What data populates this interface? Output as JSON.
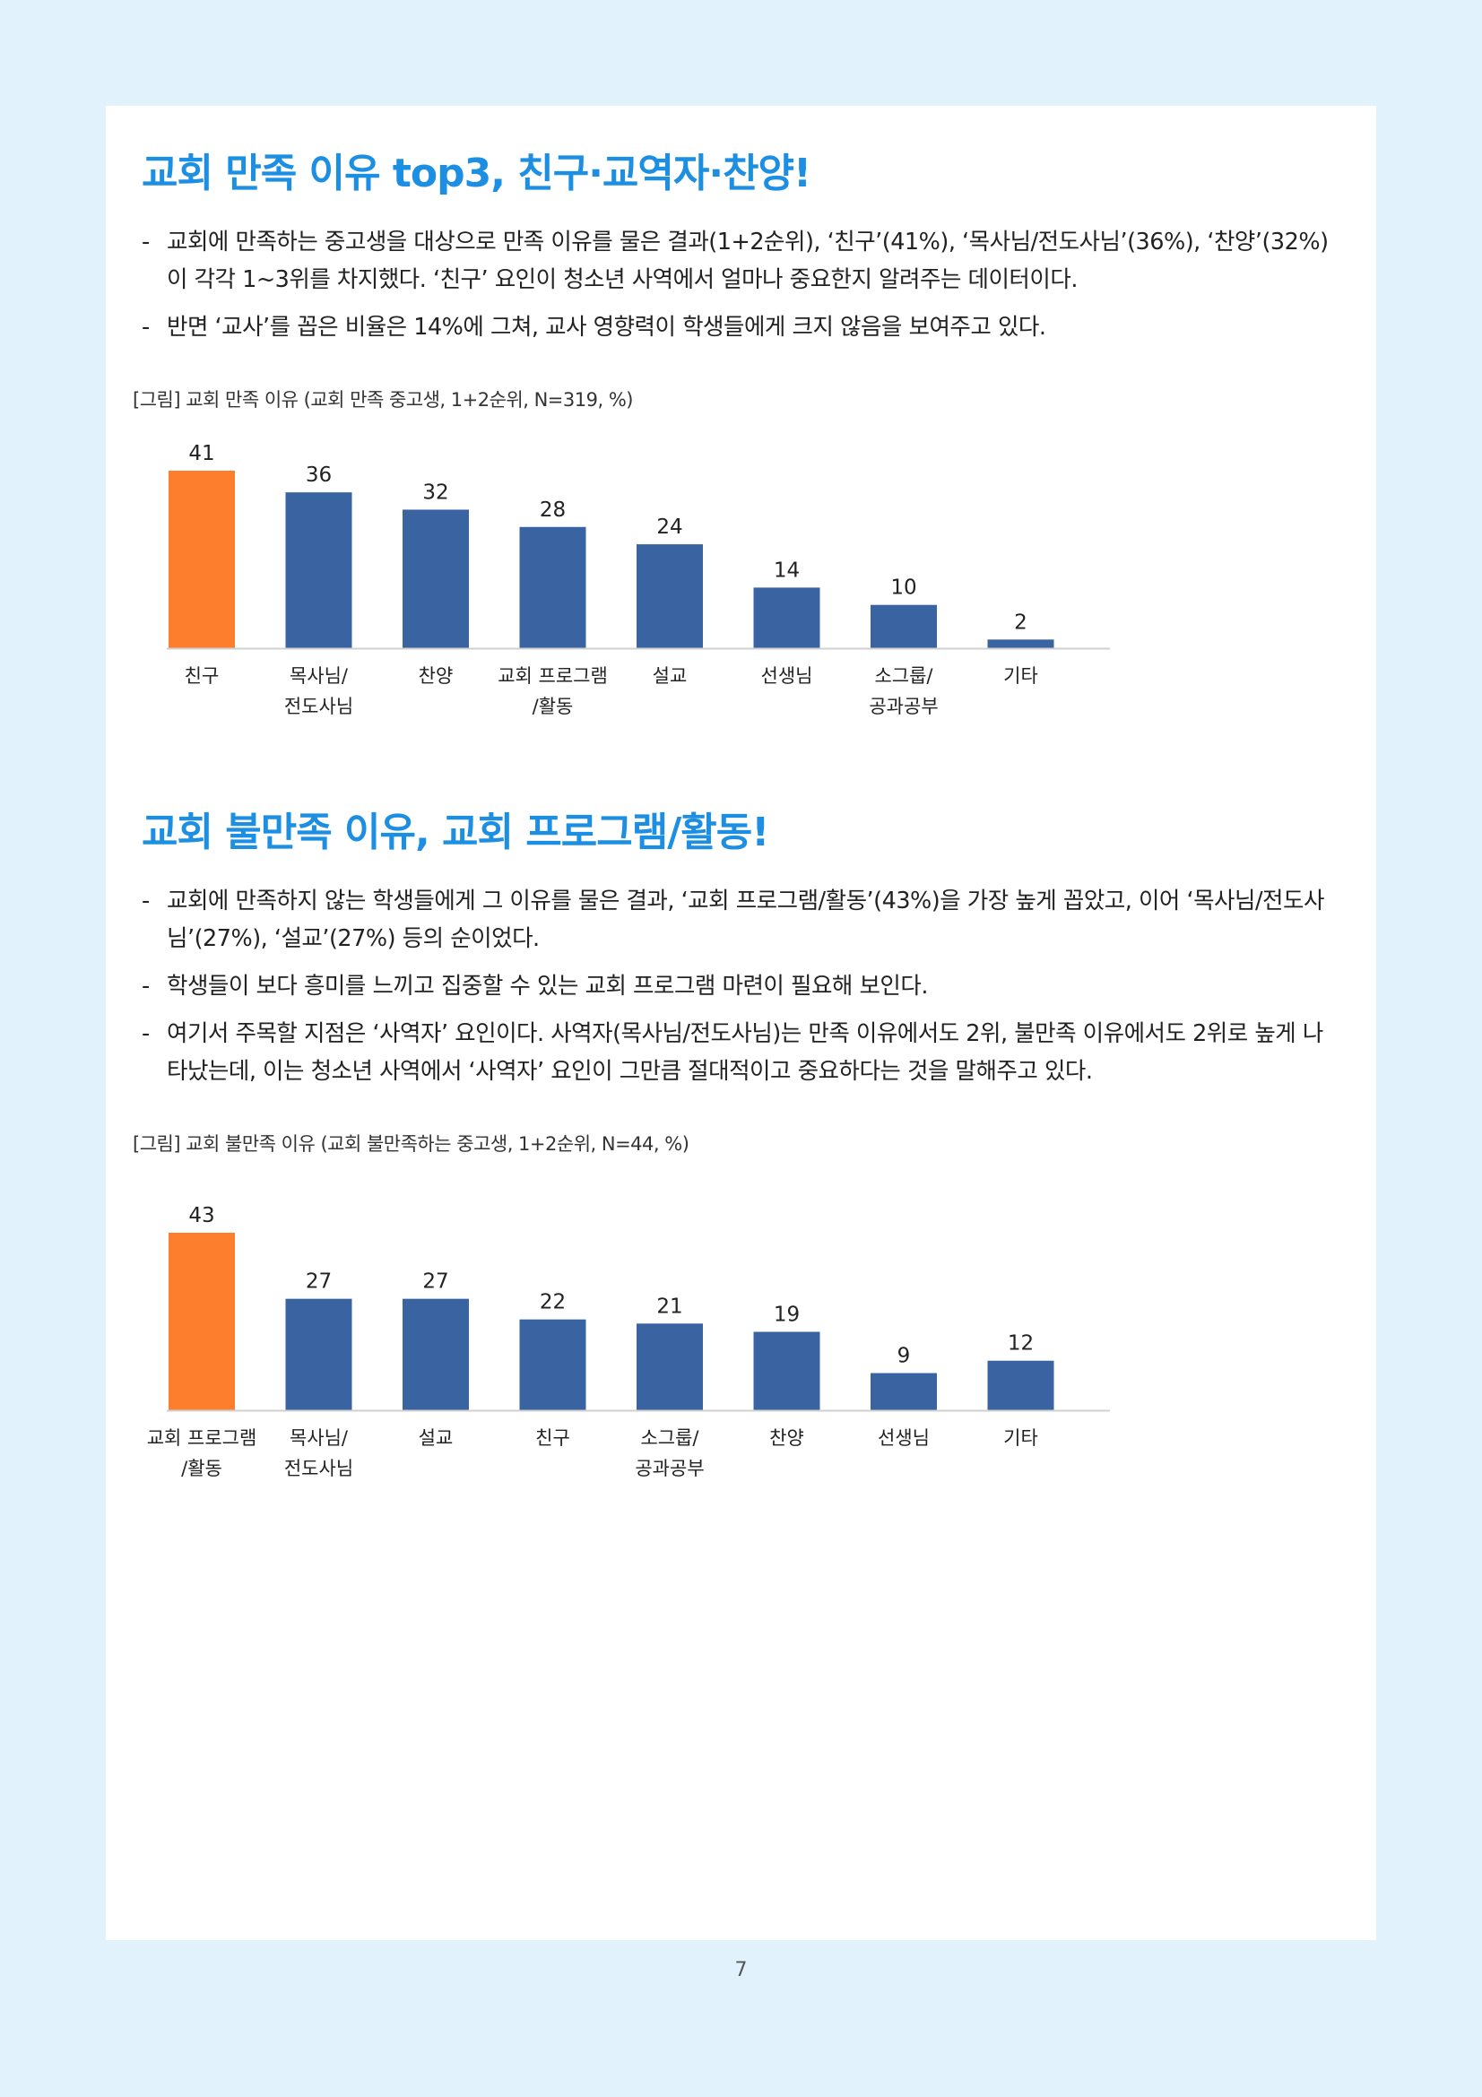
{
  "sections": [
    {
      "title": "교회 만족 이유 top3, 친구·교역자·찬양!",
      "bullets": [
        "교회에 만족하는 중고생을 대상으로 만족 이유를 물은 결과(1+2순위), ‘친구’(41%), ‘목사님/전도사님’(36%), ‘찬양’(32%)이 각각 1~3위를 차지했다. ‘친구’ 요인이 청소년 사역에서 얼마나 중요한지 알려주는 데이터이다.",
        "반면 ‘교사’를 꼽은 비율은 14%에 그쳐, 교사 영향력이 학생들에게 크지 않음을 보여주고 있다."
      ],
      "caption": "[그림] 교회 만족 이유 (교회 만족 중고생, 1+2순위, N=319, %)"
    },
    {
      "title": "교회 불만족 이유, 교회 프로그램/활동!",
      "bullets": [
        "교회에 만족하지 않는 학생들에게 그 이유를 물은 결과, ‘교회 프로그램/활동’(43%)을 가장 높게 꼽았고, 이어 ‘목사님/전도사님’(27%), ‘설교’(27%) 등의 순이었다.",
        "학생들이 보다 흥미를 느끼고 집중할 수 있는 교회 프로그램 마련이 필요해 보인다.",
        "여기서 주목할 지점은 ‘사역자’ 요인이다. 사역자(목사님/전도사님)는 만족 이유에서도 2위, 불만족 이유에서도 2위로 높게 나타났는데, 이는 청소년 사역에서 ‘사역자’ 요인이 그만큼 절대적이고 중요하다는 것을 말해주고 있다."
      ],
      "caption": "[그림] 교회 불만족 이유 (교회 불만족하는 중고생, 1+2순위, N=44, %)"
    }
  ],
  "chart_data": [
    {
      "type": "bar",
      "title": "",
      "categories": [
        "친구",
        "목사님/\n전도사님",
        "찬양",
        "교회 프로그램\n/활동",
        "설교",
        "선생님",
        "소그룹/\n공과공부",
        "기타"
      ],
      "values": [
        41,
        36,
        32,
        28,
        24,
        14,
        10,
        2
      ],
      "highlight_index": 0,
      "colors": {
        "highlight": "#fd7f2d",
        "bar": "#3a64a1",
        "axis": "#d0d0d0"
      },
      "xlabel": "",
      "ylabel": "",
      "ylim": [
        0,
        41
      ],
      "grid": false,
      "legend": "none"
    },
    {
      "type": "bar",
      "title": "",
      "categories": [
        "교회 프로그램\n/활동",
        "목사님/\n전도사님",
        "설교",
        "친구",
        "소그룹/\n공과공부",
        "찬양",
        "선생님",
        "기타"
      ],
      "values": [
        43,
        27,
        27,
        22,
        21,
        19,
        9,
        12
      ],
      "highlight_index": 0,
      "colors": {
        "highlight": "#fd7f2d",
        "bar": "#3a64a1",
        "axis": "#d0d0d0"
      },
      "xlabel": "",
      "ylabel": "",
      "ylim": [
        0,
        43
      ],
      "grid": false,
      "legend": "none"
    }
  ],
  "page_number": "7"
}
